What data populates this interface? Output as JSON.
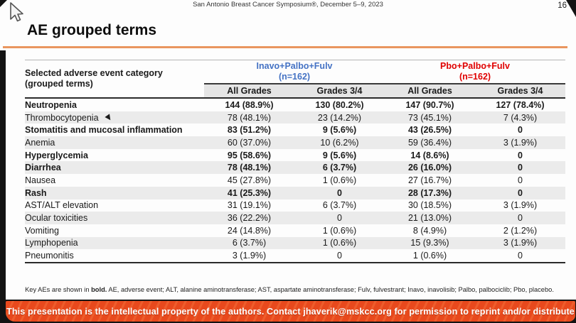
{
  "meta": {
    "symposium": "San Antonio Breast Cancer Symposium®, December 5–9, 2023",
    "page_number": "16"
  },
  "slide": {
    "title": "AE grouped terms"
  },
  "table": {
    "category_header_line1": "Selected adverse event category",
    "category_header_line2": "(grouped terms)",
    "groups": [
      {
        "label": "Inavo+Palbo+Fulv",
        "n": "(n=162)",
        "color": "#4472C4"
      },
      {
        "label": "Pbo+Palbo+Fulv",
        "n": "(n=162)",
        "color": "#E00000"
      }
    ],
    "subheaders": [
      "All Grades",
      "Grades 3/4",
      "All Grades",
      "Grades 3/4"
    ],
    "rows": [
      {
        "category": "Neutropenia",
        "values": [
          "144 (88.9%)",
          "130 (80.2%)",
          "147 (90.7%)",
          "127 (78.4%)"
        ],
        "bold": true,
        "pointer": false
      },
      {
        "category": "Thrombocytopenia",
        "values": [
          "78 (48.1%)",
          "23 (14.2%)",
          "73 (45.1%)",
          "7 (4.3%)"
        ],
        "bold": false,
        "pointer": true
      },
      {
        "category": "Stomatitis and mucosal  inflammation",
        "values": [
          "83 (51.2%)",
          "9 (5.6%)",
          "43 (26.5%)",
          "0"
        ],
        "bold": true,
        "pointer": false
      },
      {
        "category": "Anemia",
        "values": [
          "60 (37.0%)",
          "10 (6.2%)",
          "59 (36.4%)",
          "3 (1.9%)"
        ],
        "bold": false,
        "pointer": false
      },
      {
        "category": "Hyperglycemia",
        "values": [
          "95 (58.6%)",
          "9 (5.6%)",
          "14 (8.6%)",
          "0"
        ],
        "bold": true,
        "pointer": false
      },
      {
        "category": "Diarrhea",
        "values": [
          "78 (48.1%)",
          "6 (3.7%)",
          "26 (16.0%)",
          "0"
        ],
        "bold": true,
        "pointer": false
      },
      {
        "category": "Nausea",
        "values": [
          "45 (27.8%)",
          "1 (0.6%)",
          "27 (16.7%)",
          "0"
        ],
        "bold": false,
        "pointer": false
      },
      {
        "category": "Rash",
        "values": [
          "41 (25.3%)",
          "0",
          "28 (17.3%)",
          "0"
        ],
        "bold": true,
        "pointer": false
      },
      {
        "category": "AST/ALT elevation",
        "values": [
          "31 (19.1%)",
          "6 (3.7%)",
          "30 (18.5%)",
          "3 (1.9%)"
        ],
        "bold": false,
        "pointer": false
      },
      {
        "category": "Ocular toxicities",
        "values": [
          "36 (22.2%)",
          "0",
          "21 (13.0%)",
          "0"
        ],
        "bold": false,
        "pointer": false
      },
      {
        "category": "Vomiting",
        "values": [
          "24 (14.8%)",
          "1 (0.6%)",
          "8 (4.9%)",
          "2 (1.2%)"
        ],
        "bold": false,
        "pointer": false
      },
      {
        "category": "Lymphopenia",
        "values": [
          "6 (3.7%)",
          "1 (0.6%)",
          "15 (9.3%)",
          "3 (1.9%)"
        ],
        "bold": false,
        "pointer": false
      },
      {
        "category": "Pneumonitis",
        "values": [
          "3 (1.9%)",
          "0",
          "1 (0.6%)",
          "0"
        ],
        "bold": false,
        "pointer": false
      }
    ]
  },
  "footnote": {
    "prefix": "Key AEs are shown in ",
    "bold": "bold.",
    "rest": " AE, adverse event; ALT, alanine aminotransferase; AST, aspartate aminotransferase; Fulv, fulvestrant; Inavo, inavolisib; Palbo, palbociclib; Pbo, placebo."
  },
  "banner": {
    "text": "This presentation is the intellectual property of the authors. Contact jhaverik@mskcc.org for permission to reprint and/or distribute",
    "background": "#E8491D"
  },
  "colors": {
    "accent_rule": "#E9965F",
    "inavo_header": "#4472C4",
    "pbo_header": "#E00000",
    "stripe_row": "#EBEBEB"
  }
}
